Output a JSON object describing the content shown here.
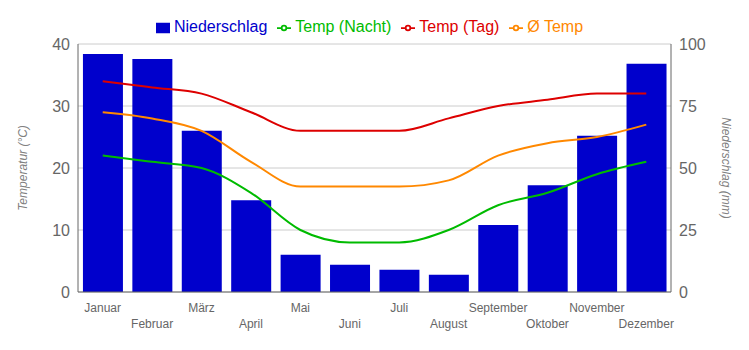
{
  "chart_data": {
    "type": "combo",
    "categories": [
      "Januar",
      "Februar",
      "März",
      "April",
      "Mai",
      "Juni",
      "Juli",
      "August",
      "September",
      "Oktober",
      "November",
      "Dezember"
    ],
    "series": [
      {
        "name": "Niederschlag",
        "type": "bar",
        "color": "#0000cc",
        "axis": "y2",
        "values": [
          96,
          94,
          65,
          37,
          15,
          11,
          9,
          7,
          27,
          43,
          63,
          92
        ]
      },
      {
        "name": "Temp (Tag)",
        "type": "line",
        "color": "#dd0000",
        "values": [
          34,
          33,
          32,
          29,
          26,
          26,
          26,
          28,
          30,
          31,
          32,
          32
        ]
      },
      {
        "name": "Ø Temp",
        "type": "line",
        "color": "#ff8800",
        "values": [
          29,
          28,
          26,
          21,
          17,
          17,
          17,
          18,
          22,
          24,
          25,
          27
        ]
      },
      {
        "name": "Temp (Nacht)",
        "type": "line",
        "color": "#00bb00",
        "values": [
          22,
          21,
          20,
          16,
          10,
          8,
          8,
          10,
          14,
          16,
          19,
          21
        ]
      }
    ],
    "ylabel": "Temperatur (°C)",
    "y2label": "Niederschlag (mm)",
    "ylim": [
      0,
      40
    ],
    "yticks": [
      0,
      10,
      20,
      30,
      40
    ],
    "y2lim": [
      0,
      100
    ],
    "y2ticks": [
      0,
      25,
      50,
      75,
      100
    ],
    "grid": true,
    "legend": "top"
  }
}
